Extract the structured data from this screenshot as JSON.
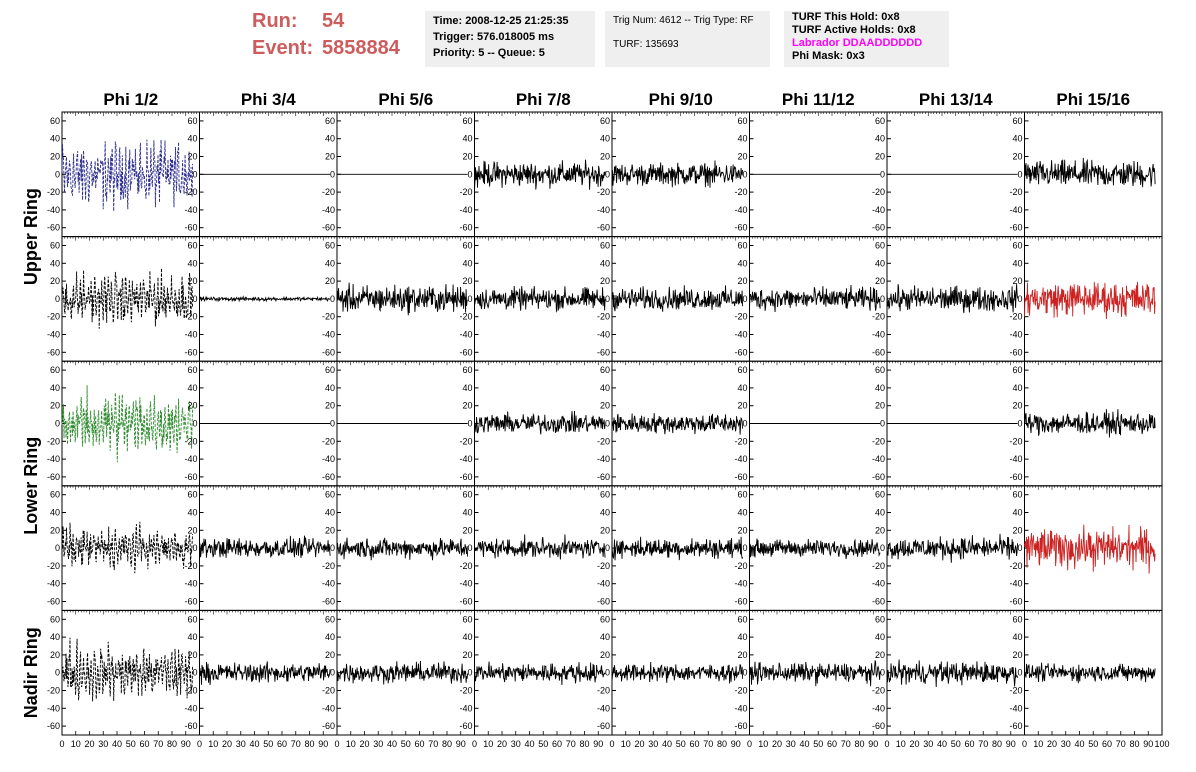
{
  "header": {
    "run_label": "Run:",
    "run_value": "54",
    "event_label": "Event:",
    "event_value": "5858884",
    "time": "Time: 2008-12-25 21:25:35",
    "trigger": "Trigger: 576.018005 ms",
    "priority": "Priority: 5 -- Queue: 5",
    "trig_num": "Trig Num: 4612 -- Trig Type: RF",
    "turf": "TURF: 135693",
    "turf_this_hold": "TURF This Hold: 0x8",
    "turf_active_holds": "TURF Active Holds: 0x8",
    "labrador": "Labrador DDAADDDDDD",
    "phi_mask": "Phi Mask: 0x3"
  },
  "colors": {
    "run_text": "#cd5c5c",
    "labrador_text": "#ff00ff",
    "trace_default": "#000000",
    "trace_blue": "#2b2b8f",
    "trace_green": "#2e8b2e",
    "trace_red": "#cc2222"
  },
  "chart_data": {
    "type": "line",
    "columns": [
      "Phi 1/2",
      "Phi 3/4",
      "Phi 5/6",
      "Phi 7/8",
      "Phi 9/10",
      "Phi 11/12",
      "Phi 13/14",
      "Phi 15/16"
    ],
    "ring_labels": [
      {
        "label": "Upper Ring",
        "rows": [
          0,
          1
        ]
      },
      {
        "label": "Lower Ring",
        "rows": [
          2,
          3
        ]
      },
      {
        "label": "Nadir Ring",
        "rows": [
          4
        ]
      }
    ],
    "xlim": [
      0,
      100
    ],
    "ylim": [
      -70,
      70
    ],
    "yticks": [
      -60,
      -40,
      -20,
      0,
      20,
      40,
      60
    ],
    "x_tick_labels": [
      "0",
      "10",
      "20",
      "30",
      "40",
      "50",
      "60",
      "70",
      "80",
      "90",
      "100"
    ],
    "trace_x_range": [
      0,
      95
    ],
    "panels": [
      [
        {
          "amp": 40,
          "color": "trace_blue",
          "dashed": true
        },
        {
          "amp": 0,
          "color": "trace_default",
          "dashed": false
        },
        {
          "amp": 0,
          "color": "trace_default",
          "dashed": false
        },
        {
          "amp": 20,
          "color": "trace_default",
          "dashed": false
        },
        {
          "amp": 18,
          "color": "trace_default",
          "dashed": false
        },
        {
          "amp": 0,
          "color": "trace_default",
          "dashed": false
        },
        {
          "amp": 0,
          "color": "trace_default",
          "dashed": false
        },
        {
          "amp": 22,
          "color": "trace_default",
          "dashed": false
        }
      ],
      [
        {
          "amp": 32,
          "color": "trace_default",
          "dashed": true
        },
        {
          "amp": 3,
          "color": "trace_default",
          "dashed": false
        },
        {
          "amp": 22,
          "color": "trace_default",
          "dashed": false
        },
        {
          "amp": 18,
          "color": "trace_default",
          "dashed": false
        },
        {
          "amp": 18,
          "color": "trace_default",
          "dashed": false
        },
        {
          "amp": 18,
          "color": "trace_default",
          "dashed": false
        },
        {
          "amp": 20,
          "color": "trace_default",
          "dashed": false
        },
        {
          "amp": 28,
          "color": "trace_red",
          "dashed": false
        }
      ],
      [
        {
          "amp": 40,
          "color": "trace_green",
          "dashed": true
        },
        {
          "amp": 0,
          "color": "trace_default",
          "dashed": false
        },
        {
          "amp": 0,
          "color": "trace_default",
          "dashed": false
        },
        {
          "amp": 16,
          "color": "trace_default",
          "dashed": false
        },
        {
          "amp": 16,
          "color": "trace_default",
          "dashed": false
        },
        {
          "amp": 0,
          "color": "trace_default",
          "dashed": false
        },
        {
          "amp": 0,
          "color": "trace_default",
          "dashed": false
        },
        {
          "amp": 18,
          "color": "trace_default",
          "dashed": false
        }
      ],
      [
        {
          "amp": 26,
          "color": "trace_default",
          "dashed": true
        },
        {
          "amp": 16,
          "color": "trace_default",
          "dashed": false
        },
        {
          "amp": 16,
          "color": "trace_default",
          "dashed": false
        },
        {
          "amp": 16,
          "color": "trace_default",
          "dashed": false
        },
        {
          "amp": 16,
          "color": "trace_default",
          "dashed": false
        },
        {
          "amp": 14,
          "color": "trace_default",
          "dashed": false
        },
        {
          "amp": 18,
          "color": "trace_default",
          "dashed": false
        },
        {
          "amp": 32,
          "color": "trace_red",
          "dashed": false
        }
      ],
      [
        {
          "amp": 34,
          "color": "trace_default",
          "dashed": true
        },
        {
          "amp": 16,
          "color": "trace_default",
          "dashed": false
        },
        {
          "amp": 16,
          "color": "trace_default",
          "dashed": false
        },
        {
          "amp": 16,
          "color": "trace_default",
          "dashed": false
        },
        {
          "amp": 14,
          "color": "trace_default",
          "dashed": false
        },
        {
          "amp": 16,
          "color": "trace_default",
          "dashed": false
        },
        {
          "amp": 18,
          "color": "trace_default",
          "dashed": false
        },
        {
          "amp": 14,
          "color": "trace_default",
          "dashed": false
        }
      ]
    ]
  }
}
